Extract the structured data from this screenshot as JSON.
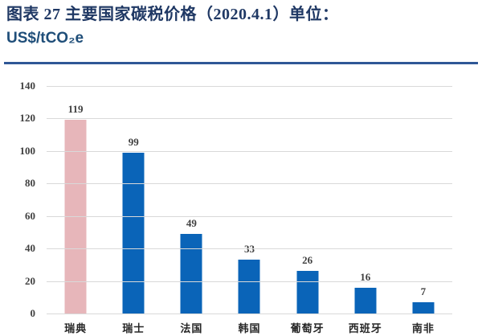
{
  "header": {
    "title_line1": "图表 27 主要国家碳税价格（2020.4.1）单位：",
    "title_line2": "US$/tCO₂e"
  },
  "colors": {
    "title": "#1F3864",
    "divider": "#2F5796",
    "gridline": "#D9D9D9",
    "axis_text": "#404040",
    "bar_blue": "#0A64B8",
    "bar_pink": "#E7B6BA"
  },
  "chart_data": {
    "type": "bar",
    "title": "主要国家碳税价格（2020.4.1）",
    "unit": "US$/tCO₂e",
    "categories": [
      "瑞典",
      "瑞士",
      "法国",
      "韩国",
      "葡萄牙",
      "西班牙",
      "南非"
    ],
    "values": [
      119,
      99,
      49,
      33,
      26,
      16,
      7
    ],
    "bar_colors": [
      "#E7B6BA",
      "#0A64B8",
      "#0A64B8",
      "#0A64B8",
      "#0A64B8",
      "#0A64B8",
      "#0A64B8"
    ],
    "value_labels": [
      "119",
      "99",
      "49",
      "33",
      "26",
      "16",
      "7"
    ],
    "xlabel": "",
    "ylabel": "",
    "ylim": [
      0,
      140
    ],
    "ytick_step": 20,
    "ytick_labels": [
      "0",
      "20",
      "40",
      "60",
      "80",
      "100",
      "120",
      "140"
    ],
    "grid": true,
    "legend": "none"
  }
}
